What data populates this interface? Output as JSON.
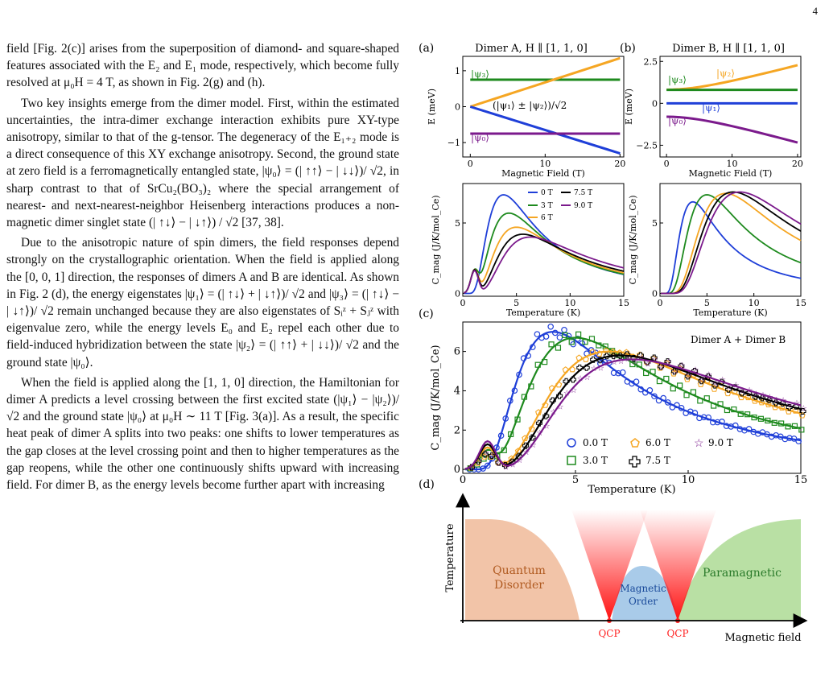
{
  "page_number": "4",
  "text": {
    "paragraphs": [
      "field [Fig. 2(c)] arises from the superposition of diamond- and square-shaped features associated with the E₂ and E₁ mode, respectively, which become fully resolved at μ₀H = 4 T, as shown in Fig. 2(g) and (h).",
      "Two key insights emerge from the dimer model. First, within the estimated uncertainties, the intra-dimer exchange interaction exhibits pure XY-type anisotropy, similar to that of the g-tensor. The degeneracy of the E₁₊₂ mode is a direct consequence of this XY exchange anisotropy. Second, the ground state at zero field is a ferromagnetically entangled state, |ψ₀⟩ = (| ↑↑⟩ − | ↓↓⟩)/ √2, in sharp contrast to that of SrCu₂(BO₃)₂ where the special arrangement of nearest- and next-nearest-neighbor Heisenberg interactions produces a non-magnetic dimer singlet state (| ↑↓⟩ − | ↓↑⟩) / √2 [37, 38].",
      "Due to the anisotropic nature of spin dimers, the field responses depend strongly on the crystallographic orientation. When the field is applied along the [0, 0, 1] direction, the responses of dimers A and B are identical. As shown in Fig. 2 (d), the energy eigenstates |ψ₁⟩ = (| ↑↓⟩ + | ↓↑⟩)/ √2 and |ψ₃⟩ = (| ↑↓⟩ − | ↓↑⟩)/ √2 remain unchanged because they are also eigenstates of Sᵢᶻ + Sⱼᶻ with eigenvalue zero, while the energy levels E₀ and E₂ repel each other due to field-induced hybridization between the state |ψ₂⟩ = (| ↑↑⟩ + | ↓↓⟩)/ √2 and the ground state |ψ₀⟩.",
      "When the field is applied along the [1, 1, 0] direction, the Hamiltonian for dimer A predicts a level crossing between the first excited state (|ψ₁⟩ − |ψ₂⟩)/ √2 and the ground state |ψ₀⟩ at μ₀H ∼ 11 T [Fig. 3(a)]. As a result, the specific heat peak of dimer A splits into two peaks: one shifts to lower temperatures as the gap closes at the level crossing point and then to higher temperatures as the gap reopens, while the other one continuously shifts upward with increasing field. For dimer B, as the energy levels become further apart with increasing"
    ]
  },
  "figure": {
    "panel_a": {
      "letter": "(a)",
      "title": "Dimer A,  H ∥ [1, 1, 0]"
    },
    "panel_b": {
      "letter": "(b)",
      "title": "Dimer B,  H ∥ [1, 1, 0]"
    },
    "panel_c": {
      "letter": "(c)",
      "annotation": "Dimer A + Dimer B"
    },
    "panel_d": {
      "letter": "(d)"
    },
    "energy_labels": {
      "psi0": "|ψ₀⟩",
      "psi1": "|ψ₁⟩",
      "psi2": "|ψ₂⟩",
      "psi3": "|ψ₃⟩",
      "mix": "(|ψ₁⟩ ± |ψ₂⟩)/√2"
    },
    "legend_small": [
      "0 T",
      "7.5 T",
      "3 T",
      "9.0 T",
      "6 T"
    ],
    "legend_c": [
      "0.0 T",
      "6.0 T",
      "9.0 T",
      "3.0 T",
      "7.5 T"
    ],
    "phase": {
      "ylabel": "Temperature",
      "xlabel": "Magnetic field",
      "region1": [
        "Quantum",
        "Disorder"
      ],
      "region2": [
        "Magnetic",
        "Order"
      ],
      "region3": "Paramagnetic",
      "qcp": "QCP",
      "colors": {
        "disorder": "#f2c4a8",
        "order": "#a9cbe9",
        "para": "#b9e0a4",
        "qcp": "#ff2020"
      }
    },
    "series_colors": {
      "0T": "#1f3fd8",
      "3T": "#1e8a1e",
      "6T": "#f5a623",
      "7.5T": "#000000",
      "9T": "#7b1a8c"
    }
  },
  "chart_data": [
    {
      "type": "line",
      "title": "Dimer A,  H ∥ [1, 1, 0]",
      "xlabel": "Magnetic Field (T)",
      "ylabel": "E (meV)",
      "xlim": [
        -1,
        20.5
      ],
      "ylim": [
        -1.4,
        1.4
      ],
      "x": [
        0,
        20
      ],
      "series": [
        {
          "name": "|ψ₃⟩",
          "values": [
            0.75,
            0.75
          ]
        },
        {
          "name": "(|ψ₁⟩ ± |ψ₂⟩)/√2",
          "values": [
            0,
            1.35
          ]
        },
        {
          "name": "(|ψ₁⟩ ± |ψ₂⟩)/√2",
          "values": [
            0,
            -1.3
          ]
        },
        {
          "name": "|ψ₀⟩",
          "values": [
            -0.75,
            -0.75
          ]
        }
      ],
      "xticks": [
        0,
        10,
        20
      ],
      "yticks": [
        -1,
        0,
        1
      ]
    },
    {
      "type": "line",
      "title": "Dimer B,  H ∥ [1, 1, 0]",
      "xlabel": "Magnetic Field (T)",
      "ylabel": "E (meV)",
      "xlim": [
        -1,
        20.5
      ],
      "ylim": [
        -3.2,
        2.8
      ],
      "x": [
        0,
        20
      ],
      "series": [
        {
          "name": "|ψ₂⟩",
          "values": [
            0.8,
            2.5
          ]
        },
        {
          "name": "|ψ₃⟩",
          "values": [
            0.8,
            0.8
          ]
        },
        {
          "name": "|ψ₁⟩",
          "values": [
            0,
            0
          ]
        },
        {
          "name": "|ψ₀⟩",
          "values": [
            -0.8,
            -3.0
          ]
        }
      ],
      "xticks": [
        0,
        10,
        20
      ],
      "yticks": [
        -2.5,
        0.0,
        2.5
      ]
    },
    {
      "type": "line",
      "xlabel": "Temperature (K)",
      "ylabel": "C_mag (J/K/mol_Ce)",
      "xlim": [
        0,
        15
      ],
      "ylim": [
        -0.2,
        7.8
      ],
      "xticks": [
        0,
        5,
        10,
        15
      ],
      "yticks": [
        0,
        5
      ],
      "series": [
        {
          "name": "0 T",
          "peak_T": 3.8,
          "peak_C": 7.0
        },
        {
          "name": "3 T",
          "peak_T": 4.3,
          "peak_C": 5.7
        },
        {
          "name": "6 T",
          "peak_T": 5.0,
          "peak_C": 4.7
        },
        {
          "name": "7.5 T",
          "peak_T": 5.6,
          "peak_C": 4.2
        },
        {
          "name": "9.0 T",
          "peak_T": 6.3,
          "peak_C": 4.0
        }
      ]
    },
    {
      "type": "line",
      "xlabel": "Temperature (K)",
      "ylabel": "C_mag (J/K/mol_Ce)",
      "xlim": [
        0,
        15
      ],
      "ylim": [
        -0.2,
        7.8
      ],
      "xticks": [
        0,
        5,
        10,
        15
      ],
      "yticks": [
        0,
        5
      ],
      "series": [
        {
          "name": "0 T",
          "peak_T": 3.5,
          "peak_C": 6.5
        },
        {
          "name": "3 T",
          "peak_T": 5.0,
          "peak_C": 7.0
        },
        {
          "name": "6 T",
          "peak_T": 7.0,
          "peak_C": 7.1
        },
        {
          "name": "7.5 T",
          "peak_T": 7.8,
          "peak_C": 7.2
        },
        {
          "name": "9.0 T",
          "peak_T": 8.5,
          "peak_C": 7.2
        }
      ]
    },
    {
      "type": "scatter",
      "xlabel": "Temperature (K)",
      "ylabel": "C_mag (J/K/mol_Ce)",
      "xlim": [
        0,
        15
      ],
      "ylim": [
        -0.2,
        7.5
      ],
      "xticks": [
        0,
        5,
        10,
        15
      ],
      "yticks": [
        0,
        2,
        4,
        6
      ],
      "series": [
        {
          "name": "0.0 T",
          "peak_T": 4.0,
          "peak_C": 7.0
        },
        {
          "name": "3.0 T",
          "peak_T": 5.0,
          "peak_C": 6.7
        },
        {
          "name": "6.0 T",
          "peak_T": 6.5,
          "peak_C": 6.0
        },
        {
          "name": "7.5 T",
          "peak_T": 7.0,
          "peak_C": 5.8
        },
        {
          "name": "9.0 T",
          "peak_T": 7.5,
          "peak_C": 5.6
        }
      ]
    }
  ]
}
